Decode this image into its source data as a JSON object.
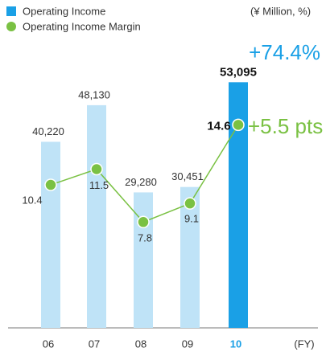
{
  "chart_data": {
    "type": "bar",
    "categories": [
      "06",
      "07",
      "08",
      "09",
      "10"
    ],
    "category_colors": [
      "#333333",
      "#333333",
      "#333333",
      "#333333",
      "#1aa0e6"
    ],
    "unit_label": "(¥ Million, %)",
    "x_axis_label": "(FY)",
    "ylim": [
      0,
      70000
    ],
    "y2lim": [
      0,
      23
    ],
    "series": [
      {
        "name": "Operating Income",
        "color": "#1aa0e6",
        "colors": [
          "#bfe3f7",
          "#bfe3f7",
          "#bfe3f7",
          "#bfe3f7",
          "#1aa0e6"
        ],
        "values": [
          40220,
          48130,
          29280,
          30451,
          53095
        ],
        "value_labels": [
          "40,220",
          "48,130",
          "29,280",
          "30,451",
          "53,095"
        ]
      },
      {
        "name": "Operating Income Margin",
        "type": "line",
        "axis": "y2",
        "color": "#7ac143",
        "values": [
          10.4,
          11.5,
          7.8,
          9.1,
          14.6
        ]
      }
    ],
    "annotations": [
      "+74.4%",
      "+5.5 pts"
    ]
  }
}
